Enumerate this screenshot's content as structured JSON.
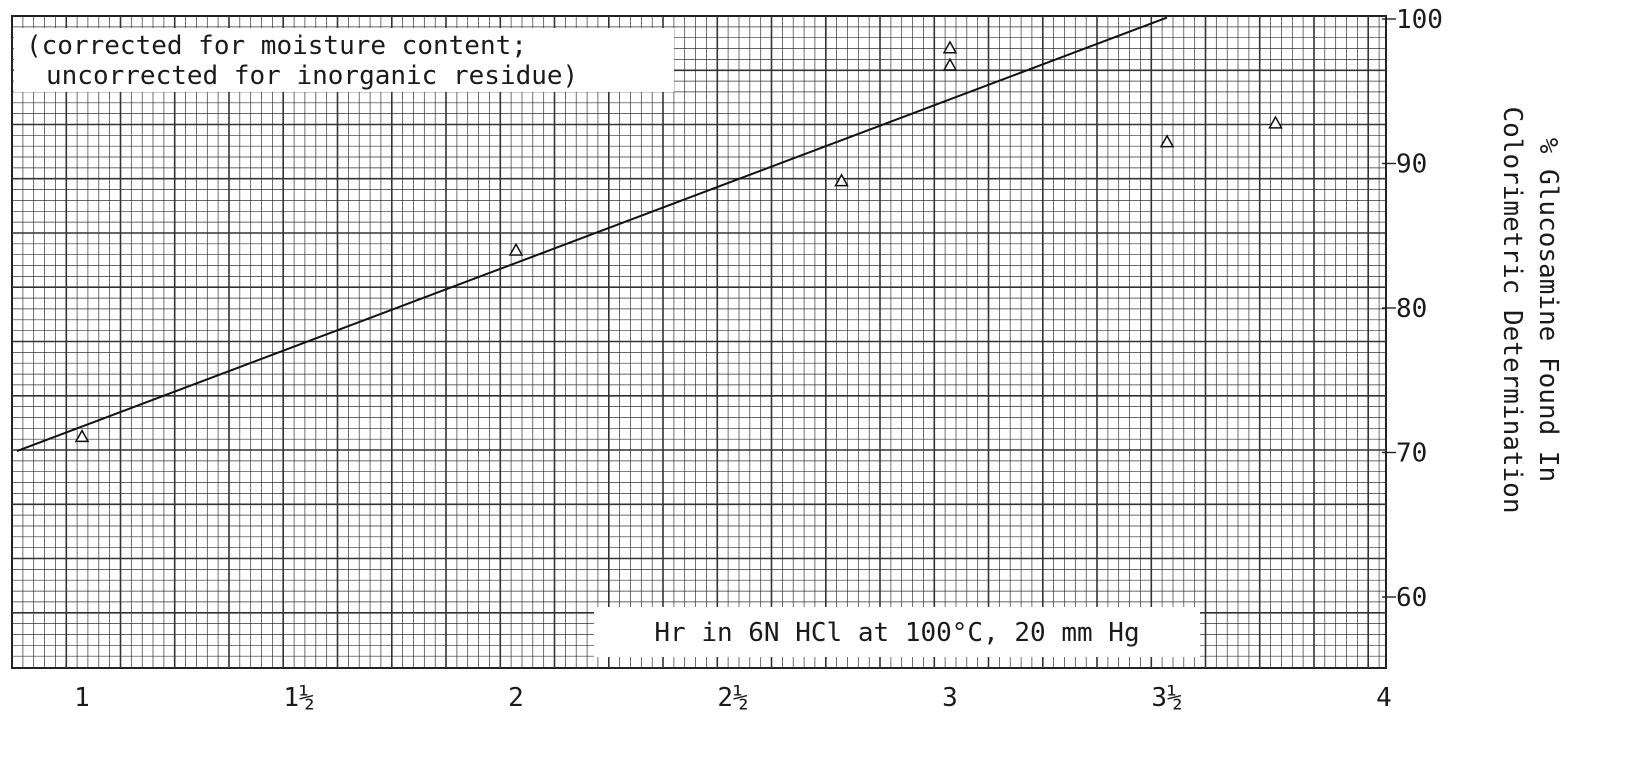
{
  "chart_data": {
    "type": "line",
    "annotation_lines": [
      "(corrected for moisture content;",
      "uncorrected for inorganic residue)"
    ],
    "xlabel": "Hr in 6N HCl at 100°C, 20 mm Hg",
    "ylabel_lines": [
      "% Glucosamine Found In",
      "Colorimetric Determination"
    ],
    "x_ticks": [
      {
        "value": 1,
        "label": "1"
      },
      {
        "value": 1.5,
        "label": "1½"
      },
      {
        "value": 2,
        "label": "2"
      },
      {
        "value": 2.5,
        "label": "2½"
      },
      {
        "value": 3,
        "label": "3"
      },
      {
        "value": 3.5,
        "label": "3½"
      },
      {
        "value": 4,
        "label": "4"
      }
    ],
    "y_ticks": [
      {
        "value": 60,
        "label": "60"
      },
      {
        "value": 70,
        "label": "70"
      },
      {
        "value": 80,
        "label": "80"
      },
      {
        "value": 90,
        "label": "90"
      },
      {
        "value": 100,
        "label": "100"
      }
    ],
    "xlim": [
      0.7,
      4.0
    ],
    "ylim": [
      55.5,
      100.1
    ],
    "grid": true,
    "series": [
      {
        "line": {
          "x": [
            0.85,
            3.5
          ],
          "y": [
            70.1,
            100.1
          ]
        },
        "points": [
          {
            "x": 1.0,
            "y": 71.1
          },
          {
            "x": 2.0,
            "y": 84.0
          },
          {
            "x": 3.0,
            "y": 96.8
          },
          {
            "x": 3.0,
            "y": 98.0
          },
          {
            "x": 2.75,
            "y": 88.8
          },
          {
            "x": 3.5,
            "y": 91.5
          },
          {
            "x": 3.75,
            "y": 92.8
          }
        ]
      }
    ]
  }
}
